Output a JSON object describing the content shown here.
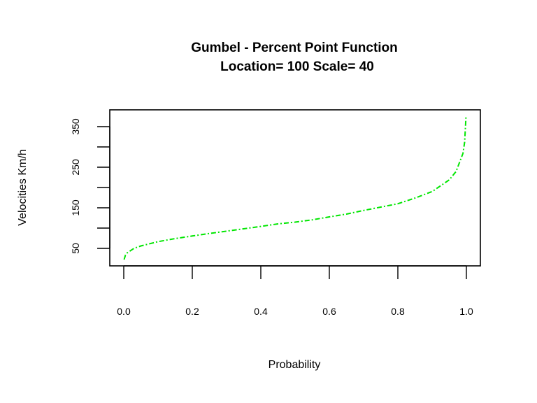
{
  "chart_data": {
    "type": "line",
    "title": "Gumbel - Percent Point Function",
    "subtitle": "Location= 100  Scale= 40",
    "xlabel": "Probability",
    "ylabel": "Velocities Km/h",
    "xlim": [
      0,
      1
    ],
    "ylim": [
      25,
      375
    ],
    "x_ticks": [
      0.0,
      0.2,
      0.4,
      0.6,
      0.8,
      1.0
    ],
    "x_tick_labels": [
      "0.0",
      "0.2",
      "0.4",
      "0.6",
      "0.8",
      "1.0"
    ],
    "y_ticks": [
      50,
      100,
      150,
      200,
      250,
      300,
      350
    ],
    "y_tick_labels": [
      "50",
      "",
      "150",
      "",
      "250",
      "",
      "350"
    ],
    "grid": false,
    "line_style": "dashdot",
    "series": [
      {
        "color": "#00e600",
        "x": [
          0.001,
          0.005,
          0.01,
          0.03,
          0.05,
          0.1,
          0.15,
          0.2,
          0.25,
          0.3,
          0.35,
          0.4,
          0.45,
          0.5,
          0.55,
          0.6,
          0.65,
          0.7,
          0.75,
          0.8,
          0.85,
          0.9,
          0.95,
          0.97,
          0.99,
          0.995,
          0.999
        ],
        "y": [
          22.4,
          33.3,
          39.0,
          50.2,
          56.1,
          66.6,
          74.1,
          80.6,
          86.7,
          92.5,
          98.2,
          104.2,
          110.4,
          114.7,
          120.4,
          127.6,
          134.5,
          143.4,
          151.8,
          160.0,
          174.0,
          190.0,
          218.8,
          239.7,
          284.0,
          311.7,
          376.3
        ]
      }
    ]
  }
}
